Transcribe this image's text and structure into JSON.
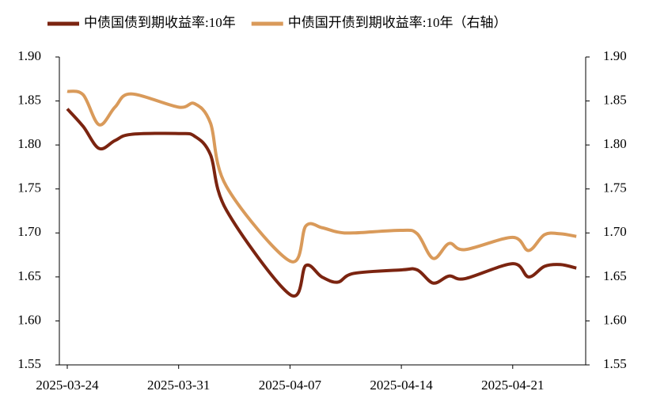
{
  "chart_data": {
    "type": "line",
    "x": [
      "2025-03-24",
      "2025-03-25",
      "2025-03-26",
      "2025-03-27",
      "2025-03-28",
      "2025-03-31",
      "2025-04-01",
      "2025-04-02",
      "2025-04-03",
      "2025-04-07",
      "2025-04-08",
      "2025-04-09",
      "2025-04-10",
      "2025-04-11",
      "2025-04-14",
      "2025-04-15",
      "2025-04-16",
      "2025-04-17",
      "2025-04-18",
      "2025-04-21",
      "2025-04-22",
      "2025-04-23",
      "2025-04-24",
      "2025-04-25"
    ],
    "series": [
      {
        "name": "中债国债到期收益率:10年",
        "color": "#7b2410",
        "values": [
          1.841,
          1.821,
          1.796,
          1.805,
          1.812,
          1.813,
          1.81,
          1.789,
          1.726,
          1.63,
          1.663,
          1.65,
          1.644,
          1.654,
          1.658,
          1.658,
          1.643,
          1.651,
          1.648,
          1.665,
          1.65,
          1.662,
          1.664,
          1.66
        ]
      },
      {
        "name": "中债国开债到期收益率:10年（右轴）",
        "color": "#d99a5a",
        "axis": "y2",
        "values": [
          1.861,
          1.857,
          1.823,
          1.843,
          1.858,
          1.843,
          1.847,
          1.825,
          1.753,
          1.668,
          1.708,
          1.706,
          1.701,
          1.7,
          1.703,
          1.699,
          1.671,
          1.688,
          1.681,
          1.695,
          1.68,
          1.698,
          1.699,
          1.696
        ]
      }
    ],
    "xticks": [
      "2025-03-24",
      "2025-03-31",
      "2025-04-07",
      "2025-04-14",
      "2025-04-21"
    ],
    "ylim": [
      1.55,
      1.9
    ],
    "yticks": [
      {
        "value": 1.55,
        "label": "1.55"
      },
      {
        "value": 1.6,
        "label": "1.60"
      },
      {
        "value": 1.65,
        "label": "1.65"
      },
      {
        "value": 1.7,
        "label": "1.70"
      },
      {
        "value": 1.75,
        "label": "1.75"
      },
      {
        "value": 1.8,
        "label": "1.80"
      },
      {
        "value": 1.85,
        "label": "1.85"
      },
      {
        "value": 1.9,
        "label": "1.90"
      }
    ],
    "y2lim": [
      1.55,
      1.9
    ],
    "y2ticks": [
      {
        "value": 1.55,
        "label": "1.55"
      },
      {
        "value": 1.6,
        "label": "1.60"
      },
      {
        "value": 1.65,
        "label": "1.65"
      },
      {
        "value": 1.7,
        "label": "1.70"
      },
      {
        "value": 1.75,
        "label": "1.75"
      },
      {
        "value": 1.8,
        "label": "1.80"
      },
      {
        "value": 1.85,
        "label": "1.85"
      },
      {
        "value": 1.9,
        "label": "1.90"
      }
    ],
    "grid": false
  }
}
